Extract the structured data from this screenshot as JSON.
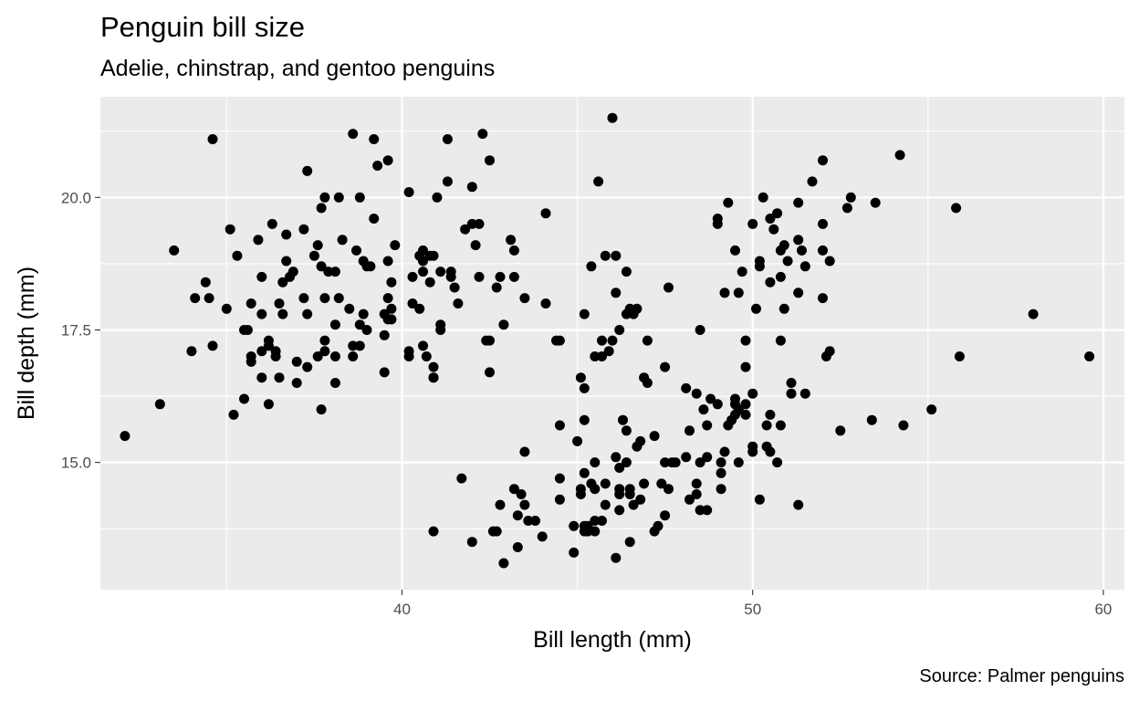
{
  "chart_data": {
    "type": "scatter",
    "title": "Penguin bill size",
    "subtitle": "Adelie, chinstrap, and gentoo penguins",
    "caption": "Source: Palmer penguins",
    "xlabel": "Bill length (mm)",
    "ylabel": "Bill depth (mm)",
    "xlim": [
      31.4,
      60.6
    ],
    "ylim": [
      12.6,
      21.9
    ],
    "x_ticks": [
      40,
      50,
      60
    ],
    "x_tick_labels": [
      "40",
      "50",
      "60"
    ],
    "y_ticks": [
      15,
      17.5,
      20
    ],
    "y_tick_labels": [
      "15.0",
      "17.5",
      "20.0"
    ],
    "grid": true,
    "colors": {
      "panel": "#ebebeb",
      "grid": "#ffffff",
      "point": "#000000"
    },
    "points": [
      [
        32.1,
        15.5
      ],
      [
        33.1,
        16.1
      ],
      [
        33.5,
        19.0
      ],
      [
        34.0,
        17.1
      ],
      [
        34.1,
        18.1
      ],
      [
        34.4,
        18.4
      ],
      [
        34.5,
        18.1
      ],
      [
        34.6,
        21.1
      ],
      [
        34.6,
        17.2
      ],
      [
        35.0,
        17.9
      ],
      [
        35.1,
        19.4
      ],
      [
        35.3,
        18.9
      ],
      [
        35.2,
        15.9
      ],
      [
        35.5,
        16.2
      ],
      [
        35.5,
        17.5
      ],
      [
        35.6,
        17.5
      ],
      [
        35.7,
        16.9
      ],
      [
        35.7,
        17.0
      ],
      [
        35.7,
        18.0
      ],
      [
        35.9,
        19.2
      ],
      [
        36.0,
        16.6
      ],
      [
        36.0,
        17.1
      ],
      [
        36.0,
        17.8
      ],
      [
        36.0,
        18.5
      ],
      [
        36.2,
        16.1
      ],
      [
        36.2,
        17.2
      ],
      [
        36.2,
        17.3
      ],
      [
        36.3,
        19.5
      ],
      [
        36.4,
        17.0
      ],
      [
        36.4,
        17.1
      ],
      [
        36.5,
        16.6
      ],
      [
        36.5,
        18.0
      ],
      [
        36.6,
        17.8
      ],
      [
        36.6,
        18.4
      ],
      [
        36.7,
        18.8
      ],
      [
        36.7,
        19.3
      ],
      [
        36.8,
        18.5
      ],
      [
        36.9,
        18.6
      ],
      [
        37.0,
        16.9
      ],
      [
        37.0,
        16.5
      ],
      [
        37.2,
        18.1
      ],
      [
        37.2,
        19.4
      ],
      [
        37.3,
        20.5
      ],
      [
        37.3,
        17.8
      ],
      [
        37.3,
        16.8
      ],
      [
        37.5,
        18.9
      ],
      [
        37.6,
        19.1
      ],
      [
        37.6,
        17.0
      ],
      [
        37.7,
        18.7
      ],
      [
        37.7,
        19.8
      ],
      [
        37.7,
        16.0
      ],
      [
        37.8,
        17.1
      ],
      [
        37.8,
        17.3
      ],
      [
        37.8,
        18.1
      ],
      [
        37.8,
        20.0
      ],
      [
        37.9,
        18.6
      ],
      [
        38.1,
        18.6
      ],
      [
        38.1,
        17.6
      ],
      [
        38.1,
        17.0
      ],
      [
        38.1,
        16.5
      ],
      [
        38.2,
        18.1
      ],
      [
        38.2,
        20.0
      ],
      [
        38.3,
        19.2
      ],
      [
        38.5,
        17.9
      ],
      [
        38.6,
        17.2
      ],
      [
        38.6,
        21.2
      ],
      [
        38.6,
        17.0
      ],
      [
        38.7,
        19.0
      ],
      [
        38.8,
        17.2
      ],
      [
        38.8,
        17.6
      ],
      [
        38.8,
        20.0
      ],
      [
        38.9,
        17.8
      ],
      [
        38.9,
        18.8
      ],
      [
        39.0,
        17.5
      ],
      [
        39.0,
        18.7
      ],
      [
        39.1,
        18.7
      ],
      [
        39.2,
        19.6
      ],
      [
        39.2,
        21.1
      ],
      [
        39.3,
        20.6
      ],
      [
        39.5,
        16.7
      ],
      [
        39.5,
        17.4
      ],
      [
        39.5,
        17.8
      ],
      [
        39.6,
        17.7
      ],
      [
        39.6,
        18.1
      ],
      [
        39.6,
        18.8
      ],
      [
        39.6,
        20.7
      ],
      [
        39.7,
        17.7
      ],
      [
        39.7,
        18.4
      ],
      [
        39.7,
        17.9
      ],
      [
        39.8,
        19.1
      ],
      [
        40.2,
        17.0
      ],
      [
        40.2,
        17.1
      ],
      [
        40.2,
        20.1
      ],
      [
        40.3,
        18.0
      ],
      [
        40.3,
        18.5
      ],
      [
        40.5,
        17.9
      ],
      [
        40.5,
        18.9
      ],
      [
        40.6,
        17.2
      ],
      [
        40.6,
        18.6
      ],
      [
        40.6,
        18.8
      ],
      [
        40.6,
        19.0
      ],
      [
        40.7,
        17.0
      ],
      [
        40.8,
        18.4
      ],
      [
        40.8,
        18.9
      ],
      [
        40.9,
        16.6
      ],
      [
        40.9,
        16.8
      ],
      [
        40.9,
        18.9
      ],
      [
        41.0,
        20.0
      ],
      [
        41.1,
        17.5
      ],
      [
        41.1,
        17.6
      ],
      [
        41.1,
        18.6
      ],
      [
        41.3,
        20.3
      ],
      [
        41.3,
        21.1
      ],
      [
        41.4,
        18.5
      ],
      [
        41.4,
        18.6
      ],
      [
        41.5,
        18.3
      ],
      [
        41.6,
        18.0
      ],
      [
        41.8,
        19.4
      ],
      [
        42.0,
        19.5
      ],
      [
        42.0,
        20.2
      ],
      [
        42.1,
        19.1
      ],
      [
        42.2,
        18.5
      ],
      [
        42.2,
        19.5
      ],
      [
        42.3,
        21.2
      ],
      [
        42.5,
        16.7
      ],
      [
        42.5,
        17.3
      ],
      [
        42.5,
        20.7
      ],
      [
        42.7,
        18.3
      ],
      [
        42.8,
        18.5
      ],
      [
        42.9,
        17.6
      ],
      [
        43.1,
        19.2
      ],
      [
        43.2,
        18.5
      ],
      [
        43.2,
        19.0
      ],
      [
        43.5,
        18.1
      ],
      [
        44.1,
        18.0
      ],
      [
        44.1,
        19.7
      ],
      [
        44.5,
        17.3
      ],
      [
        45.2,
        17.8
      ],
      [
        45.4,
        18.7
      ],
      [
        45.6,
        20.3
      ],
      [
        45.7,
        17.3
      ],
      [
        45.7,
        17.0
      ],
      [
        45.8,
        18.9
      ],
      [
        46.0,
        21.5
      ],
      [
        46.1,
        18.2
      ],
      [
        46.2,
        17.5
      ],
      [
        46.4,
        18.6
      ],
      [
        46.5,
        17.9
      ],
      [
        46.6,
        17.8
      ],
      [
        46.7,
        17.9
      ],
      [
        47.0,
        17.3
      ],
      [
        47.5,
        16.8
      ],
      [
        47.6,
        18.3
      ],
      [
        48.5,
        17.5
      ],
      [
        46.1,
        18.9
      ],
      [
        46.4,
        17.8
      ],
      [
        45.5,
        17.0
      ],
      [
        45.9,
        17.1
      ],
      [
        46.0,
        17.3
      ],
      [
        45.1,
        16.6
      ],
      [
        49.0,
        19.5
      ],
      [
        49.0,
        19.6
      ],
      [
        49.2,
        18.2
      ],
      [
        49.3,
        19.9
      ],
      [
        49.5,
        19.0
      ],
      [
        49.6,
        18.2
      ],
      [
        49.7,
        18.6
      ],
      [
        49.8,
        17.3
      ],
      [
        49.8,
        16.8
      ],
      [
        50.0,
        19.5
      ],
      [
        50.1,
        17.9
      ],
      [
        50.2,
        18.7
      ],
      [
        50.2,
        18.8
      ],
      [
        50.3,
        20.0
      ],
      [
        50.5,
        18.4
      ],
      [
        50.5,
        19.6
      ],
      [
        50.6,
        19.4
      ],
      [
        50.7,
        19.7
      ],
      [
        50.8,
        17.3
      ],
      [
        50.8,
        18.5
      ],
      [
        50.8,
        19.0
      ],
      [
        50.9,
        17.9
      ],
      [
        50.9,
        19.1
      ],
      [
        51.0,
        18.8
      ],
      [
        51.3,
        18.2
      ],
      [
        51.3,
        19.2
      ],
      [
        51.3,
        19.9
      ],
      [
        51.4,
        19.0
      ],
      [
        51.5,
        18.7
      ],
      [
        51.7,
        20.3
      ],
      [
        52.0,
        18.1
      ],
      [
        52.0,
        19.0
      ],
      [
        52.0,
        20.7
      ],
      [
        52.0,
        19.5
      ],
      [
        52.2,
        18.8
      ],
      [
        52.2,
        17.1
      ],
      [
        52.1,
        17.0
      ],
      [
        52.7,
        19.8
      ],
      [
        52.8,
        20.0
      ],
      [
        53.5,
        19.9
      ],
      [
        54.2,
        20.8
      ],
      [
        55.8,
        19.8
      ],
      [
        58.0,
        17.8
      ],
      [
        42.4,
        17.3
      ],
      [
        40.9,
        16.6
      ],
      [
        43.5,
        15.2
      ],
      [
        40.9,
        13.7
      ],
      [
        41.7,
        14.7
      ],
      [
        42.0,
        13.5
      ],
      [
        42.6,
        13.7
      ],
      [
        42.7,
        13.7
      ],
      [
        42.8,
        14.2
      ],
      [
        42.9,
        13.1
      ],
      [
        43.2,
        14.5
      ],
      [
        43.3,
        13.4
      ],
      [
        43.3,
        14.0
      ],
      [
        43.4,
        14.4
      ],
      [
        43.5,
        14.2
      ],
      [
        43.6,
        13.9
      ],
      [
        43.8,
        13.9
      ],
      [
        44.0,
        13.6
      ],
      [
        44.4,
        17.3
      ],
      [
        44.5,
        14.3
      ],
      [
        44.5,
        14.7
      ],
      [
        44.5,
        15.7
      ],
      [
        44.9,
        13.3
      ],
      [
        44.9,
        13.8
      ],
      [
        45.0,
        15.4
      ],
      [
        45.1,
        14.4
      ],
      [
        45.1,
        14.5
      ],
      [
        45.2,
        13.7
      ],
      [
        45.2,
        13.8
      ],
      [
        45.2,
        14.8
      ],
      [
        45.2,
        15.8
      ],
      [
        45.2,
        16.4
      ],
      [
        45.3,
        13.7
      ],
      [
        45.3,
        13.8
      ],
      [
        45.4,
        14.6
      ],
      [
        45.5,
        13.7
      ],
      [
        45.5,
        13.9
      ],
      [
        45.5,
        14.5
      ],
      [
        45.5,
        15.0
      ],
      [
        45.7,
        13.9
      ],
      [
        45.8,
        14.2
      ],
      [
        45.8,
        14.6
      ],
      [
        46.1,
        13.2
      ],
      [
        46.1,
        15.1
      ],
      [
        46.2,
        14.1
      ],
      [
        46.2,
        14.4
      ],
      [
        46.2,
        14.5
      ],
      [
        46.2,
        14.9
      ],
      [
        46.3,
        15.8
      ],
      [
        46.4,
        15.0
      ],
      [
        46.4,
        15.6
      ],
      [
        46.5,
        13.5
      ],
      [
        46.5,
        14.4
      ],
      [
        46.5,
        14.5
      ],
      [
        46.6,
        14.2
      ],
      [
        46.7,
        15.3
      ],
      [
        46.8,
        14.3
      ],
      [
        46.8,
        15.4
      ],
      [
        46.9,
        14.6
      ],
      [
        46.9,
        16.6
      ],
      [
        47.0,
        16.5
      ],
      [
        47.2,
        13.7
      ],
      [
        47.2,
        15.5
      ],
      [
        47.3,
        13.8
      ],
      [
        47.4,
        14.6
      ],
      [
        47.5,
        14.0
      ],
      [
        47.5,
        15.0
      ],
      [
        47.6,
        14.5
      ],
      [
        47.7,
        15.0
      ],
      [
        47.8,
        15.0
      ],
      [
        48.1,
        15.1
      ],
      [
        48.1,
        16.4
      ],
      [
        48.2,
        14.3
      ],
      [
        48.2,
        15.6
      ],
      [
        48.4,
        14.4
      ],
      [
        48.4,
        14.6
      ],
      [
        48.4,
        16.3
      ],
      [
        48.5,
        14.1
      ],
      [
        48.5,
        15.0
      ],
      [
        48.6,
        16.0
      ],
      [
        48.7,
        14.1
      ],
      [
        48.7,
        15.1
      ],
      [
        48.7,
        15.7
      ],
      [
        48.8,
        16.2
      ],
      [
        49.0,
        16.1
      ],
      [
        49.1,
        14.5
      ],
      [
        49.1,
        14.8
      ],
      [
        49.1,
        15.0
      ],
      [
        49.2,
        15.2
      ],
      [
        49.3,
        15.7
      ],
      [
        49.4,
        15.8
      ],
      [
        49.5,
        15.9
      ],
      [
        49.5,
        16.1
      ],
      [
        49.5,
        16.2
      ],
      [
        49.6,
        15.0
      ],
      [
        49.6,
        16.0
      ],
      [
        49.8,
        15.9
      ],
      [
        49.8,
        16.1
      ],
      [
        50.0,
        15.2
      ],
      [
        50.0,
        15.3
      ],
      [
        50.0,
        16.3
      ],
      [
        50.2,
        14.3
      ],
      [
        50.4,
        15.3
      ],
      [
        50.4,
        15.7
      ],
      [
        50.5,
        15.2
      ],
      [
        50.5,
        15.9
      ],
      [
        50.7,
        15.0
      ],
      [
        50.8,
        15.7
      ],
      [
        51.1,
        16.3
      ],
      [
        51.1,
        16.5
      ],
      [
        51.3,
        14.2
      ],
      [
        51.5,
        16.3
      ],
      [
        52.5,
        15.6
      ],
      [
        53.4,
        15.8
      ],
      [
        54.3,
        15.7
      ],
      [
        55.1,
        16.0
      ],
      [
        55.9,
        17.0
      ],
      [
        59.6,
        17.0
      ]
    ]
  }
}
